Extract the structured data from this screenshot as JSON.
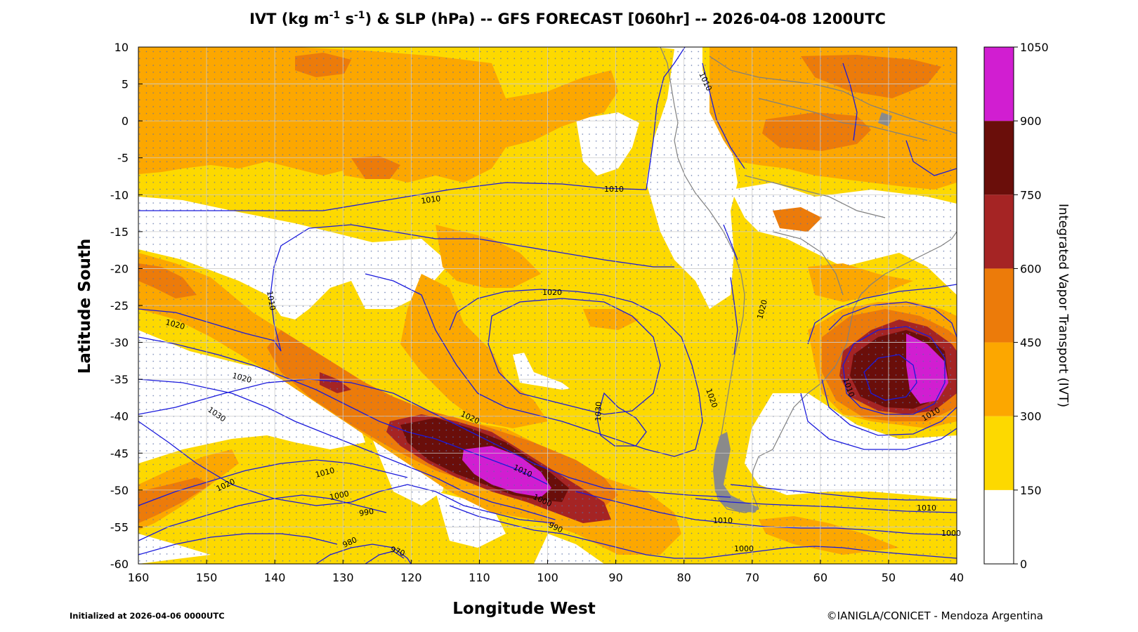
{
  "title": {
    "prefix": "IVT (kg m",
    "exp1": "-1",
    "mid": " s",
    "exp2": "-1",
    "suffix": ") & SLP (hPa) -- GFS FORECAST [060hr] -- 2026-04-08 1200UTC"
  },
  "xlabel": "Longitude West",
  "ylabel": "Latitude South",
  "colorbar_label": "Integrated Vapor Transport (IVT)",
  "initialized": "Initialized at 2026-04-06 0000UTC",
  "credit": "©IANIGLA/CONICET - Mendoza Argentina",
  "x_ticks": [
    "160",
    "150",
    "140",
    "130",
    "120",
    "110",
    "100",
    "90",
    "80",
    "70",
    "60",
    "50",
    "40"
  ],
  "y_ticks": [
    "10",
    "5",
    "0",
    "-5",
    "-10",
    "-15",
    "-20",
    "-25",
    "-30",
    "-35",
    "-40",
    "-45",
    "-50",
    "-55",
    "-60"
  ],
  "colorbar": {
    "ticks": [
      "0",
      "150",
      "300",
      "450",
      "600",
      "750",
      "900",
      "1050"
    ],
    "colors": [
      "#ffffff",
      "#fdd900",
      "#fca700",
      "#ec7b0a",
      "#a52424",
      "#6a0e0a",
      "#d11ed1"
    ]
  },
  "isobar_labels": [
    "1010",
    "1010",
    "1010",
    "1010",
    "1020",
    "1020",
    "1020",
    "1020",
    "1020",
    "1020",
    "1030",
    "1030",
    "1020",
    "1010",
    "1000",
    "990",
    "980",
    "970",
    "1010",
    "1000",
    "990",
    "1010",
    "1000",
    "1010",
    "1010",
    "1000",
    "1010"
  ],
  "colors": {
    "isobar": "#1a1adc",
    "coast": "#808080",
    "grid": "#cccccc"
  }
}
